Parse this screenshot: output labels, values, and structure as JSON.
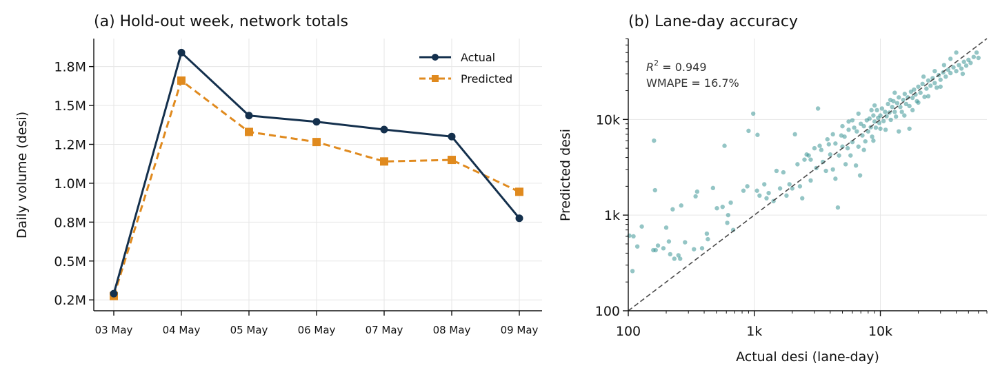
{
  "chart_data": [
    {
      "type": "line",
      "title": "(a) Hold-out week, network totals",
      "xlabel": "",
      "ylabel": "Daily volume (desi)",
      "categories": [
        "03 May",
        "04 May",
        "05 May",
        "06 May",
        "07 May",
        "08 May",
        "09 May"
      ],
      "y_ticks": [
        250000,
        500000,
        750000,
        1000000,
        1250000,
        1500000,
        1750000
      ],
      "y_tick_labels": [
        "0.2M",
        "0.5M",
        "0.8M",
        "1.0M",
        "1.2M",
        "1.5M",
        "1.8M"
      ],
      "ylim": [
        180000,
        1930000
      ],
      "grid": true,
      "legend_position": "top-right",
      "series": [
        {
          "name": "Actual",
          "color": "#14304d",
          "marker": "circle",
          "linestyle": "solid",
          "values": [
            290000,
            1840000,
            1435000,
            1395000,
            1345000,
            1300000,
            775000
          ]
        },
        {
          "name": "Predicted",
          "color": "#e08a1e",
          "marker": "square",
          "linestyle": "dashed",
          "values": [
            275000,
            1660000,
            1330000,
            1265000,
            1140000,
            1150000,
            945000
          ]
        }
      ]
    },
    {
      "type": "scatter",
      "title": "(b) Lane-day accuracy",
      "xlabel": "Actual desi (lane-day)",
      "ylabel": "Predicted desi",
      "x_scale": "log",
      "y_scale": "log",
      "xlim": [
        100,
        70000
      ],
      "ylim": [
        100,
        70000
      ],
      "x_ticks": [
        100,
        1000,
        10000
      ],
      "x_tick_labels": [
        "100",
        "1k",
        "10k"
      ],
      "y_ticks": [
        100,
        1000,
        10000
      ],
      "y_tick_labels": [
        "100",
        "1k",
        "10k"
      ],
      "grid": true,
      "color": "#2a8c8c",
      "reference_line": "y = x",
      "annotations": [
        "R² = 0.949",
        "WMAPE = 16.7%"
      ],
      "points": [
        [
          110,
          600
        ],
        [
          102,
          610
        ],
        [
          108,
          260
        ],
        [
          118,
          470
        ],
        [
          128,
          760
        ],
        [
          158,
          430
        ],
        [
          160,
          6000
        ],
        [
          163,
          1820
        ],
        [
          165,
          430
        ],
        [
          172,
          480
        ],
        [
          190,
          450
        ],
        [
          200,
          740
        ],
        [
          210,
          530
        ],
        [
          215,
          390
        ],
        [
          225,
          1150
        ],
        [
          232,
          350
        ],
        [
          250,
          380
        ],
        [
          258,
          350
        ],
        [
          263,
          1260
        ],
        [
          282,
          520
        ],
        [
          332,
          440
        ],
        [
          342,
          1570
        ],
        [
          352,
          1760
        ],
        [
          385,
          450
        ],
        [
          420,
          640
        ],
        [
          428,
          560
        ],
        [
          470,
          1920
        ],
        [
          505,
          1180
        ],
        [
          560,
          1220
        ],
        [
          580,
          5300
        ],
        [
          610,
          830
        ],
        [
          620,
          1000
        ],
        [
          650,
          1350
        ],
        [
          680,
          700
        ],
        [
          820,
          1800
        ],
        [
          880,
          2000
        ],
        [
          900,
          7600
        ],
        [
          980,
          11500
        ],
        [
          1050,
          1800
        ],
        [
          1060,
          6900
        ],
        [
          1100,
          1600
        ],
        [
          1200,
          2100
        ],
        [
          1250,
          1500
        ],
        [
          1300,
          1700
        ],
        [
          1420,
          1400
        ],
        [
          1500,
          2900
        ],
        [
          1600,
          1900
        ],
        [
          1700,
          2800
        ],
        [
          1800,
          1600
        ],
        [
          1900,
          2100
        ],
        [
          2000,
          1900
        ],
        [
          2100,
          7000
        ],
        [
          2200,
          3400
        ],
        [
          2300,
          2000
        ],
        [
          2400,
          1500
        ],
        [
          2500,
          3800
        ],
        [
          2600,
          4300
        ],
        [
          2700,
          4200
        ],
        [
          2800,
          3800
        ],
        [
          3000,
          5000
        ],
        [
          3100,
          3100
        ],
        [
          3200,
          13000
        ],
        [
          3300,
          5300
        ],
        [
          3500,
          3600
        ],
        [
          3700,
          2900
        ],
        [
          3900,
          5500
        ],
        [
          4000,
          4300
        ],
        [
          4200,
          3000
        ],
        [
          4400,
          5600
        ],
        [
          4600,
          1200
        ],
        [
          4700,
          4200
        ],
        [
          4900,
          6800
        ],
        [
          5000,
          5200
        ],
        [
          5200,
          6600
        ],
        [
          5300,
          3400
        ],
        [
          5500,
          5000
        ],
        [
          5600,
          7800
        ],
        [
          5800,
          4200
        ],
        [
          6000,
          5800
        ],
        [
          6200,
          8200
        ],
        [
          6400,
          3300
        ],
        [
          6500,
          7500
        ],
        [
          6700,
          5200
        ],
        [
          6900,
          2600
        ],
        [
          7000,
          9000
        ],
        [
          7200,
          6800
        ],
        [
          7400,
          8500
        ],
        [
          7600,
          5900
        ],
        [
          7800,
          9800
        ],
        [
          8000,
          7500
        ],
        [
          8200,
          10200
        ],
        [
          8400,
          8300
        ],
        [
          8600,
          6600
        ],
        [
          8800,
          11000
        ],
        [
          9000,
          9500
        ],
        [
          9200,
          8200
        ],
        [
          9400,
          12500
        ],
        [
          9600,
          10400
        ],
        [
          9800,
          9200
        ],
        [
          10000,
          11000
        ],
        [
          10300,
          13000
        ],
        [
          10600,
          9600
        ],
        [
          10900,
          12000
        ],
        [
          11200,
          10800
        ],
        [
          11500,
          14500
        ],
        [
          11800,
          11800
        ],
        [
          12100,
          9900
        ],
        [
          12400,
          13500
        ],
        [
          12700,
          15500
        ],
        [
          13000,
          12000
        ],
        [
          13300,
          10700
        ],
        [
          13600,
          14800
        ],
        [
          14000,
          17000
        ],
        [
          14400,
          13500
        ],
        [
          14800,
          12000
        ],
        [
          15200,
          16000
        ],
        [
          15600,
          18500
        ],
        [
          16000,
          14500
        ],
        [
          16500,
          17000
        ],
        [
          17000,
          13800
        ],
        [
          17500,
          19500
        ],
        [
          18000,
          16800
        ],
        [
          18500,
          20500
        ],
        [
          19000,
          18200
        ],
        [
          19500,
          15500
        ],
        [
          20000,
          22000
        ],
        [
          20800,
          19000
        ],
        [
          21600,
          23500
        ],
        [
          22400,
          17200
        ],
        [
          23200,
          21000
        ],
        [
          24000,
          25500
        ],
        [
          25000,
          22500
        ],
        [
          26000,
          27000
        ],
        [
          27000,
          24000
        ],
        [
          28000,
          21500
        ],
        [
          29000,
          29000
        ],
        [
          30000,
          26000
        ],
        [
          31500,
          31000
        ],
        [
          33000,
          28000
        ],
        [
          34500,
          33000
        ],
        [
          36000,
          30500
        ],
        [
          38000,
          35000
        ],
        [
          40000,
          32000
        ],
        [
          42000,
          37000
        ],
        [
          44000,
          34000
        ],
        [
          46000,
          40000
        ],
        [
          48000,
          36500
        ],
        [
          50000,
          42000
        ],
        [
          52000,
          39000
        ],
        [
          55000,
          45000
        ],
        [
          58000,
          50000
        ],
        [
          60000,
          44000
        ],
        [
          17000,
          8000
        ],
        [
          12000,
          16000
        ],
        [
          8500,
          12500
        ],
        [
          6000,
          9800
        ],
        [
          5000,
          8500
        ],
        [
          14000,
          7500
        ],
        [
          9000,
          14000
        ],
        [
          3800,
          6200
        ],
        [
          2800,
          2300
        ],
        [
          4400,
          2400
        ],
        [
          7400,
          4800
        ],
        [
          24000,
          17500
        ],
        [
          36000,
          43000
        ],
        [
          27000,
          32000
        ],
        [
          18000,
          12500
        ],
        [
          10000,
          8000
        ],
        [
          13000,
          19000
        ],
        [
          22000,
          28000
        ],
        [
          32000,
          37000
        ],
        [
          45000,
          30000
        ],
        [
          5600,
          9500
        ],
        [
          15500,
          11000
        ],
        [
          11000,
          7800
        ],
        [
          20000,
          15000
        ],
        [
          30000,
          22000
        ],
        [
          40000,
          50000
        ],
        [
          8800,
          6000
        ],
        [
          6700,
          11500
        ],
        [
          4200,
          7000
        ],
        [
          3400,
          4800
        ]
      ]
    }
  ],
  "legend": {
    "actual": "Actual",
    "predicted": "Predicted"
  },
  "annotation": {
    "r2_symbol": "R",
    "r2_value": " = 0.949",
    "wmape": "WMAPE = 16.7%"
  }
}
